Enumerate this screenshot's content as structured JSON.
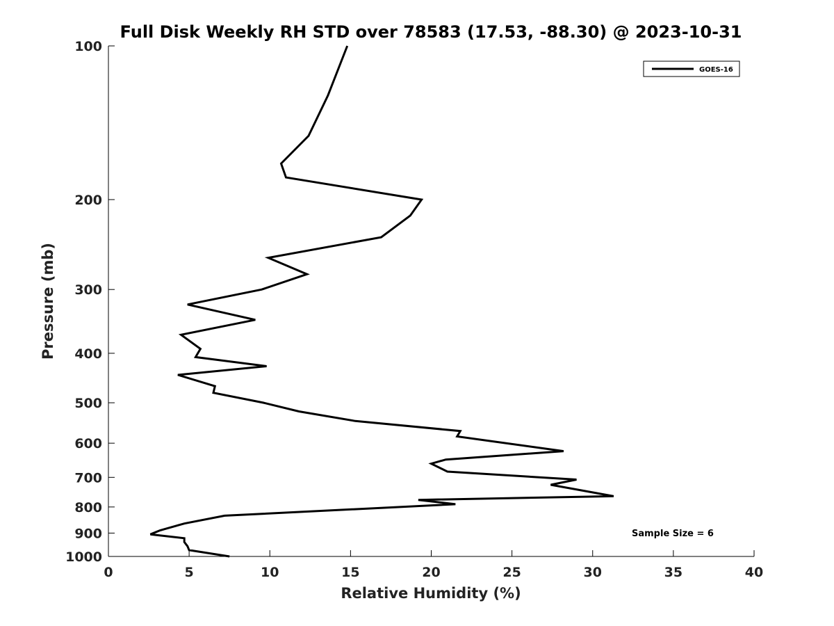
{
  "chart_data": {
    "type": "line",
    "title": "Full Disk Weekly RH STD over 78583 (17.53, -88.30) @ 2023-10-31",
    "xlabel": "Relative Humidity (%)",
    "ylabel": "Pressure (mb)",
    "xlim": [
      0,
      40
    ],
    "ylim": [
      100,
      1000
    ],
    "y_scale": "log",
    "y_inverted": true,
    "grid": false,
    "legend_position": "top-right",
    "x_ticks": [
      0,
      5,
      10,
      15,
      20,
      25,
      30,
      35,
      40
    ],
    "x_tick_labels": [
      "0",
      "5",
      "10",
      "15",
      "20",
      "25",
      "30",
      "35",
      "40"
    ],
    "y_ticks": [
      100,
      200,
      300,
      400,
      500,
      600,
      700,
      800,
      900,
      1000
    ],
    "y_tick_labels": [
      "100",
      "200",
      "300",
      "400",
      "500",
      "600",
      "700",
      "800",
      "900",
      "1000"
    ],
    "series": [
      {
        "name": "GOES-16",
        "color": "#000000",
        "points": [
          [
            14.8,
            100
          ],
          [
            13.6,
            125
          ],
          [
            12.4,
            150
          ],
          [
            10.7,
            170
          ],
          [
            11.0,
            181
          ],
          [
            19.4,
            200
          ],
          [
            18.7,
            215
          ],
          [
            16.9,
            237
          ],
          [
            9.9,
            260
          ],
          [
            12.3,
            280
          ],
          [
            9.5,
            300
          ],
          [
            4.9,
            321
          ],
          [
            9.1,
            344
          ],
          [
            4.5,
            368
          ],
          [
            5.7,
            392
          ],
          [
            5.4,
            407
          ],
          [
            9.8,
            424
          ],
          [
            4.3,
            441
          ],
          [
            6.6,
            464
          ],
          [
            6.5,
            478
          ],
          [
            9.6,
            500
          ],
          [
            11.8,
            520
          ],
          [
            15.3,
            543
          ],
          [
            21.8,
            568
          ],
          [
            21.6,
            582
          ],
          [
            28.2,
            622
          ],
          [
            20.9,
            646
          ],
          [
            20.0,
            658
          ],
          [
            21.0,
            682
          ],
          [
            29.0,
            707
          ],
          [
            27.4,
            724
          ],
          [
            31.3,
            762
          ],
          [
            19.2,
            775
          ],
          [
            21.5,
            790
          ],
          [
            7.2,
            832
          ],
          [
            4.7,
            862
          ],
          [
            3.2,
            889
          ],
          [
            2.6,
            905
          ],
          [
            4.7,
            921
          ],
          [
            4.7,
            937
          ],
          [
            4.9,
            955
          ],
          [
            5.0,
            972
          ],
          [
            7.5,
            1000
          ]
        ]
      }
    ],
    "legend": [
      {
        "label": "GOES-16",
        "color": "#000000"
      }
    ],
    "annotations": [
      {
        "text": "Sample Size = 6",
        "position": "bottom-right"
      }
    ]
  }
}
